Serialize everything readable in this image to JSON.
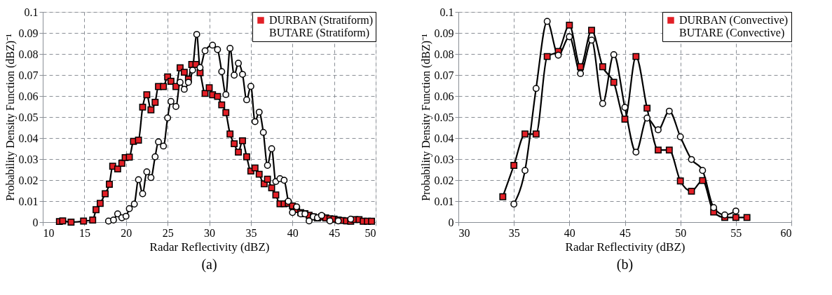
{
  "chart_data": [
    {
      "type": "line",
      "xlabel": "Radar Reflectivity (dBZ)",
      "ylabel": "Probability Density Function (dBZ)⁻¹",
      "annotations": [
        "(a)"
      ],
      "xlim": [
        10,
        50
      ],
      "xticks": [
        10,
        15,
        20,
        25,
        30,
        35,
        40,
        45,
        50
      ],
      "ylim": [
        0,
        0.1
      ],
      "yticks": [
        0,
        0.01,
        0.02,
        0.03,
        0.04,
        0.05,
        0.06,
        0.07,
        0.08,
        0.09,
        0.1
      ],
      "grid": true,
      "legend": "top right",
      "line_style": "solid",
      "series": [
        {
          "name": "DURBAN (Stratiform)",
          "color": "#e21f26",
          "marker": "square",
          "x": [
            12.0,
            12.4,
            13.4,
            14.9,
            16.0,
            16.4,
            16.9,
            17.5,
            18.0,
            18.4,
            19.0,
            19.5,
            19.9,
            20.4,
            20.9,
            21.5,
            22.0,
            22.5,
            23.0,
            23.5,
            23.9,
            24.5,
            25.0,
            25.4,
            26.0,
            26.5,
            27.0,
            27.5,
            27.9,
            28.4,
            28.9,
            29.5,
            30.0,
            30.4,
            31.0,
            31.5,
            32.0,
            32.5,
            33.0,
            33.5,
            34.0,
            34.5,
            35.0,
            35.5,
            36.0,
            36.6,
            37.0,
            37.5,
            38.0,
            38.5,
            39.0,
            39.5,
            40.0,
            40.5,
            41.0,
            41.5,
            42.0,
            42.5,
            43.0,
            43.5,
            44.0,
            44.5,
            45.0,
            45.5,
            46.0,
            46.5,
            47.0,
            47.5,
            48.0,
            48.5,
            49.0,
            49.5
          ],
          "values": [
            0.0003,
            0.0006,
            0.0,
            0.0005,
            0.001,
            0.0059,
            0.0089,
            0.0135,
            0.018,
            0.0266,
            0.0253,
            0.028,
            0.0307,
            0.0309,
            0.0384,
            0.039,
            0.0547,
            0.0606,
            0.0534,
            0.057,
            0.0645,
            0.0645,
            0.0691,
            0.067,
            0.0645,
            0.0734,
            0.0713,
            0.068,
            0.075,
            0.075,
            0.0711,
            0.0612,
            0.0639,
            0.0606,
            0.0598,
            0.0558,
            0.0521,
            0.0419,
            0.0373,
            0.0333,
            0.0387,
            0.0311,
            0.0243,
            0.0258,
            0.0228,
            0.0182,
            0.0204,
            0.0163,
            0.0129,
            0.0087,
            0.0087,
            0.009,
            0.0077,
            0.006,
            0.0045,
            0.004,
            0.0033,
            0.0025,
            0.002,
            0.0025,
            0.002,
            0.0016,
            0.0014,
            0.001,
            0.0008,
            0.0006,
            0.0004,
            0.0012,
            0.0012,
            0.0004,
            0.0004,
            0.0004
          ]
        },
        {
          "name": "BUTARE (Stratiform)",
          "color": "#ffffff",
          "marker": "circle",
          "x": [
            17.9,
            18.5,
            19.0,
            19.5,
            20.0,
            20.4,
            21.0,
            21.5,
            22.0,
            22.5,
            23.0,
            23.5,
            23.9,
            24.5,
            25.0,
            25.4,
            26.0,
            26.5,
            27.0,
            27.5,
            28.0,
            28.5,
            28.9,
            29.5,
            30.4,
            31.0,
            31.5,
            32.0,
            32.5,
            33.0,
            33.5,
            34.0,
            34.5,
            35.0,
            35.5,
            36.0,
            36.5,
            37.0,
            37.5,
            38.0,
            38.5,
            39.0,
            39.5,
            40.0,
            40.5,
            41.0,
            41.5,
            42.0,
            42.5,
            43.0,
            43.5,
            44.5,
            45.5,
            47.0
          ],
          "values": [
            0.0005,
            0.001,
            0.0039,
            0.0021,
            0.0028,
            0.0064,
            0.0086,
            0.0202,
            0.0135,
            0.0239,
            0.0212,
            0.0311,
            0.0382,
            0.0362,
            0.0496,
            0.0574,
            0.055,
            0.0665,
            0.0632,
            0.0665,
            0.0723,
            0.0893,
            0.0735,
            0.0815,
            0.0842,
            0.0821,
            0.0716,
            0.0607,
            0.0827,
            0.0699,
            0.0756,
            0.0703,
            0.0582,
            0.0646,
            0.0478,
            0.0523,
            0.0427,
            0.027,
            0.0349,
            0.0193,
            0.0207,
            0.0199,
            0.0099,
            0.0046,
            0.0073,
            0.0039,
            0.0039,
            0.0006,
            0.0026,
            0.0021,
            0.0032,
            0.0006,
            0.0006,
            0.0014
          ]
        }
      ]
    },
    {
      "type": "line",
      "xlabel": "Radar Reflectivity (dBZ)",
      "ylabel": "Probability Density Function (dBZ)⁻¹",
      "annotations": [
        "(b)"
      ],
      "xlim": [
        30,
        60
      ],
      "xticks": [
        30,
        35,
        40,
        45,
        50,
        55,
        60
      ],
      "ylim": [
        0,
        0.1
      ],
      "yticks": [
        0,
        0.01,
        0.02,
        0.03,
        0.04,
        0.05,
        0.06,
        0.07,
        0.08,
        0.09,
        0.1
      ],
      "grid": true,
      "legend": "top right",
      "line_style": "solid",
      "series": [
        {
          "name": "DURBAN (Convective)",
          "color": "#e21f26",
          "marker": "square",
          "x": [
            34,
            35,
            36,
            37,
            38,
            39,
            40,
            41,
            42,
            43,
            44,
            45,
            46,
            47,
            48,
            49,
            50,
            51,
            52,
            53,
            54,
            55,
            56
          ],
          "values": [
            0.0121,
            0.027,
            0.0419,
            0.0419,
            0.0788,
            0.0812,
            0.0937,
            0.0739,
            0.0913,
            0.0739,
            0.0665,
            0.049,
            0.0788,
            0.0542,
            0.0343,
            0.0343,
            0.0196,
            0.0147,
            0.0198,
            0.0048,
            0.0022,
            0.0022,
            0.0022
          ]
        },
        {
          "name": "BUTARE (Convective)",
          "color": "#ffffff",
          "marker": "circle",
          "x": [
            35,
            36,
            37,
            38,
            39,
            40,
            41,
            42,
            43,
            44,
            45,
            46,
            47,
            48,
            49,
            50,
            51,
            52,
            53,
            54,
            55
          ],
          "values": [
            0.0086,
            0.0246,
            0.0636,
            0.0955,
            0.0794,
            0.0882,
            0.0707,
            0.0866,
            0.0564,
            0.0797,
            0.0546,
            0.0333,
            0.0495,
            0.0439,
            0.0528,
            0.0406,
            0.0298,
            0.0246,
            0.0069,
            0.0034,
            0.0053
          ]
        }
      ]
    }
  ]
}
